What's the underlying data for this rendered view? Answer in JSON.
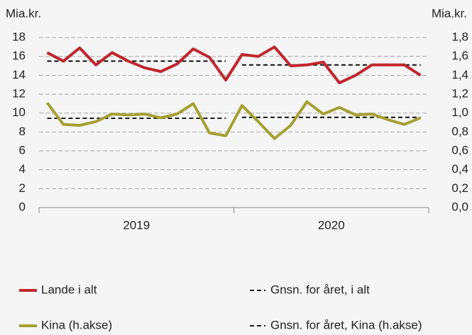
{
  "chart_data": {
    "type": "line",
    "ylabel": "Mia.kr.",
    "y2label": "Mia.kr.",
    "categories": [
      null,
      null,
      null,
      null,
      null,
      null,
      null,
      null,
      null,
      null,
      null,
      null,
      null,
      null,
      null,
      null,
      null,
      null,
      null,
      null,
      null,
      null,
      null,
      null
    ],
    "years": [
      "2019",
      "2020"
    ],
    "ylim": [
      0,
      18
    ],
    "yticks": [
      0,
      2,
      4,
      6,
      8,
      10,
      12,
      14,
      16,
      18
    ],
    "y2lim": [
      0,
      1.8
    ],
    "y2ticks": [
      {
        "value": 0,
        "label": "0,0"
      },
      {
        "value": 0.2,
        "label": "0,2"
      },
      {
        "value": 0.4,
        "label": "0,4"
      },
      {
        "value": 0.6,
        "label": "0,6"
      },
      {
        "value": 0.8,
        "label": "0,8"
      },
      {
        "value": 1.0,
        "label": "1,0"
      },
      {
        "value": 1.2,
        "label": "1,2"
      },
      {
        "value": 1.4,
        "label": "1,4"
      },
      {
        "value": 1.6,
        "label": "1,6"
      },
      {
        "value": 1.8,
        "label": "1,8"
      }
    ],
    "grid": true,
    "series": [
      {
        "name": "Lande i alt",
        "color": "#c0262d",
        "values": [
          16.4,
          15.5,
          16.9,
          15.1,
          16.4,
          15.5,
          14.8,
          14.4,
          15.2,
          16.8,
          15.9,
          13.5,
          16.2,
          16.0,
          17.0,
          15.0,
          15.1,
          15.4,
          13.2,
          14.0,
          15.1,
          15.1,
          15.1,
          14.0
        ]
      },
      {
        "name": "Kina (h.akse)",
        "color": "#a5a033",
        "axis": "y2",
        "values": [
          1.11,
          0.88,
          0.87,
          0.91,
          0.99,
          0.98,
          0.99,
          0.95,
          0.99,
          1.1,
          0.79,
          0.76,
          1.08,
          0.91,
          0.73,
          0.87,
          1.12,
          0.99,
          1.06,
          0.98,
          0.99,
          0.93,
          0.88,
          0.95
        ]
      }
    ],
    "yearly_averages": [
      {
        "name": "Gnsn. for året, i alt",
        "color": "#000000",
        "values": [
          15.5,
          15.1
        ]
      },
      {
        "name": "Gnsn. for året, Kina (h.akse)",
        "color": "#000000",
        "axis": "y2",
        "values": [
          0.945,
          0.955
        ]
      }
    ]
  }
}
